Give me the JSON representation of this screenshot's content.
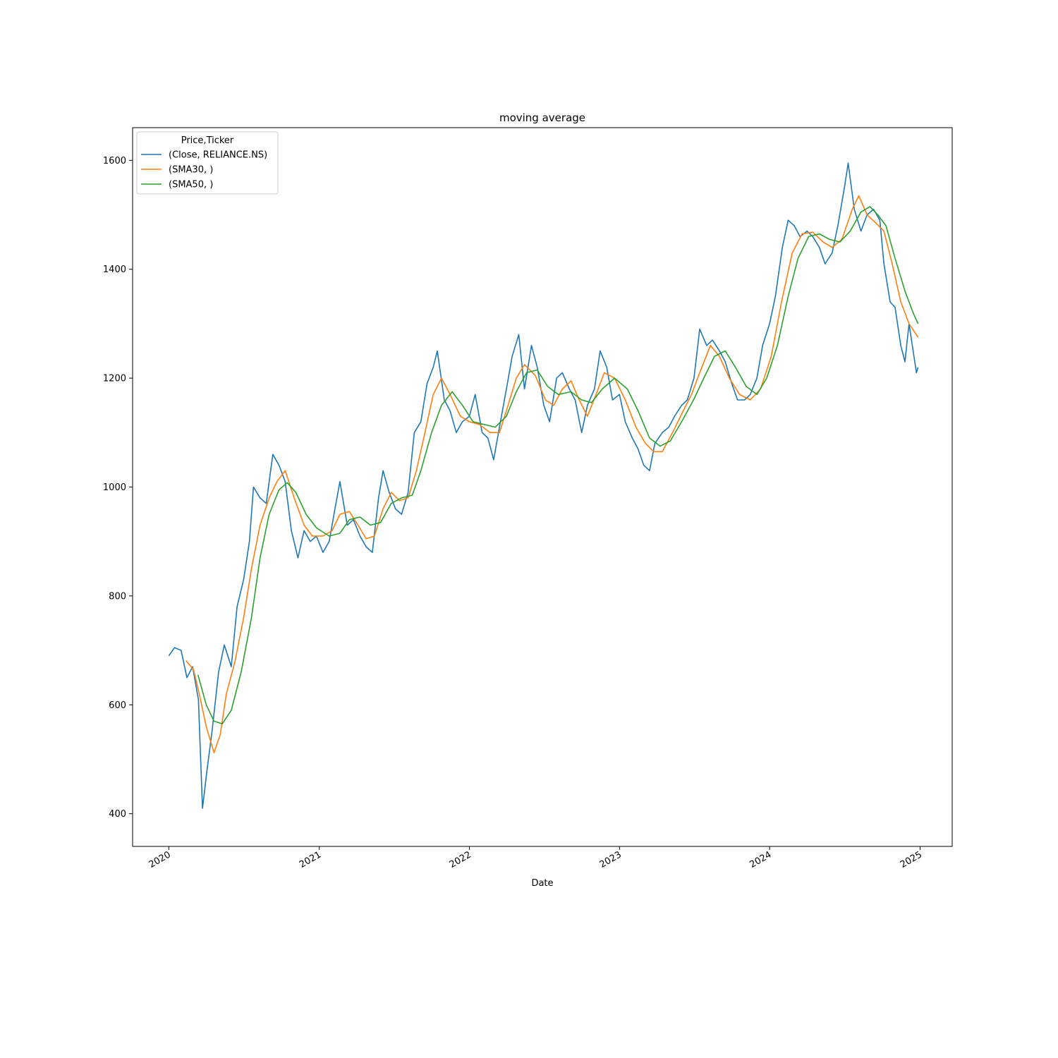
{
  "chart_data": {
    "type": "line",
    "title": "moving average",
    "xlabel": "Date",
    "ylabel": "",
    "xlim": [
      "2019-10-05",
      "2025-03-20"
    ],
    "ylim": [
      340,
      1660
    ],
    "x_ticks": [
      "2020",
      "2021",
      "2022",
      "2023",
      "2024",
      "2025"
    ],
    "y_ticks": [
      400,
      600,
      800,
      1000,
      1200,
      1400,
      1600
    ],
    "legend": {
      "title": "Price,Ticker",
      "position": "top-left"
    },
    "grid": false,
    "series": [
      {
        "name": "(Close, RELIANCE.NS)",
        "color": "#1f77b4",
        "points": [
          [
            "2020-01-01",
            690
          ],
          [
            "2020-01-15",
            705
          ],
          [
            "2020-01-31",
            700
          ],
          [
            "2020-02-14",
            650
          ],
          [
            "2020-02-28",
            670
          ],
          [
            "2020-03-13",
            610
          ],
          [
            "2020-03-23",
            410
          ],
          [
            "2020-04-03",
            480
          ],
          [
            "2020-04-15",
            550
          ],
          [
            "2020-05-01",
            660
          ],
          [
            "2020-05-15",
            710
          ],
          [
            "2020-06-01",
            670
          ],
          [
            "2020-06-15",
            780
          ],
          [
            "2020-07-01",
            830
          ],
          [
            "2020-07-15",
            900
          ],
          [
            "2020-07-25",
            1000
          ],
          [
            "2020-08-10",
            980
          ],
          [
            "2020-08-25",
            970
          ],
          [
            "2020-09-10",
            1060
          ],
          [
            "2020-09-25",
            1040
          ],
          [
            "2020-10-10",
            1010
          ],
          [
            "2020-10-25",
            920
          ],
          [
            "2020-11-10",
            870
          ],
          [
            "2020-11-25",
            920
          ],
          [
            "2020-12-10",
            900
          ],
          [
            "2020-12-25",
            910
          ],
          [
            "2021-01-10",
            880
          ],
          [
            "2021-01-25",
            900
          ],
          [
            "2021-02-08",
            960
          ],
          [
            "2021-02-20",
            1010
          ],
          [
            "2021-03-10",
            930
          ],
          [
            "2021-03-25",
            940
          ],
          [
            "2021-04-10",
            910
          ],
          [
            "2021-04-25",
            890
          ],
          [
            "2021-05-10",
            880
          ],
          [
            "2021-05-25",
            980
          ],
          [
            "2021-06-05",
            1030
          ],
          [
            "2021-06-20",
            990
          ],
          [
            "2021-07-05",
            960
          ],
          [
            "2021-07-20",
            950
          ],
          [
            "2021-08-05",
            990
          ],
          [
            "2021-08-20",
            1100
          ],
          [
            "2021-09-05",
            1120
          ],
          [
            "2021-09-20",
            1190
          ],
          [
            "2021-10-05",
            1220
          ],
          [
            "2021-10-15",
            1250
          ],
          [
            "2021-11-01",
            1160
          ],
          [
            "2021-11-15",
            1140
          ],
          [
            "2021-11-30",
            1100
          ],
          [
            "2021-12-15",
            1120
          ],
          [
            "2022-01-01",
            1130
          ],
          [
            "2022-01-15",
            1170
          ],
          [
            "2022-02-01",
            1100
          ],
          [
            "2022-02-15",
            1090
          ],
          [
            "2022-03-01",
            1050
          ],
          [
            "2022-03-15",
            1110
          ],
          [
            "2022-04-01",
            1180
          ],
          [
            "2022-04-15",
            1240
          ],
          [
            "2022-05-01",
            1280
          ],
          [
            "2022-05-15",
            1180
          ],
          [
            "2022-06-01",
            1260
          ],
          [
            "2022-06-15",
            1220
          ],
          [
            "2022-07-01",
            1150
          ],
          [
            "2022-07-15",
            1120
          ],
          [
            "2022-08-01",
            1200
          ],
          [
            "2022-08-15",
            1210
          ],
          [
            "2022-09-01",
            1180
          ],
          [
            "2022-09-15",
            1160
          ],
          [
            "2022-10-01",
            1100
          ],
          [
            "2022-10-15",
            1150
          ],
          [
            "2022-11-01",
            1180
          ],
          [
            "2022-11-15",
            1250
          ],
          [
            "2022-12-01",
            1220
          ],
          [
            "2022-12-15",
            1160
          ],
          [
            "2023-01-01",
            1170
          ],
          [
            "2023-01-15",
            1120
          ],
          [
            "2023-02-01",
            1090
          ],
          [
            "2023-02-15",
            1070
          ],
          [
            "2023-03-01",
            1040
          ],
          [
            "2023-03-15",
            1030
          ],
          [
            "2023-03-28",
            1080
          ],
          [
            "2023-04-15",
            1100
          ],
          [
            "2023-05-01",
            1110
          ],
          [
            "2023-05-15",
            1130
          ],
          [
            "2023-06-01",
            1150
          ],
          [
            "2023-06-15",
            1160
          ],
          [
            "2023-07-01",
            1200
          ],
          [
            "2023-07-15",
            1290
          ],
          [
            "2023-08-01",
            1260
          ],
          [
            "2023-08-15",
            1270
          ],
          [
            "2023-09-01",
            1250
          ],
          [
            "2023-09-15",
            1230
          ],
          [
            "2023-10-01",
            1190
          ],
          [
            "2023-10-15",
            1160
          ],
          [
            "2023-11-01",
            1160
          ],
          [
            "2023-11-15",
            1170
          ],
          [
            "2023-12-01",
            1200
          ],
          [
            "2023-12-15",
            1260
          ],
          [
            "2024-01-01",
            1300
          ],
          [
            "2024-01-15",
            1350
          ],
          [
            "2024-02-01",
            1440
          ],
          [
            "2024-02-15",
            1490
          ],
          [
            "2024-03-01",
            1480
          ],
          [
            "2024-03-15",
            1460
          ],
          [
            "2024-04-01",
            1470
          ],
          [
            "2024-04-15",
            1460
          ],
          [
            "2024-05-01",
            1440
          ],
          [
            "2024-05-15",
            1410
          ],
          [
            "2024-06-01",
            1430
          ],
          [
            "2024-06-15",
            1480
          ],
          [
            "2024-07-01",
            1550
          ],
          [
            "2024-07-10",
            1595
          ],
          [
            "2024-07-25",
            1510
          ],
          [
            "2024-08-10",
            1470
          ],
          [
            "2024-08-25",
            1500
          ],
          [
            "2024-09-10",
            1510
          ],
          [
            "2024-09-25",
            1490
          ],
          [
            "2024-10-05",
            1410
          ],
          [
            "2024-10-20",
            1340
          ],
          [
            "2024-11-01",
            1330
          ],
          [
            "2024-11-15",
            1260
          ],
          [
            "2024-11-25",
            1230
          ],
          [
            "2024-12-05",
            1300
          ],
          [
            "2024-12-15",
            1250
          ],
          [
            "2024-12-23",
            1210
          ],
          [
            "2024-12-27",
            1220
          ]
        ]
      },
      {
        "name": "(SMA30, )",
        "color": "#ff7f0e",
        "points": [
          [
            "2020-02-12",
            681
          ],
          [
            "2020-03-01",
            665
          ],
          [
            "2020-03-15",
            620
          ],
          [
            "2020-04-01",
            560
          ],
          [
            "2020-04-20",
            512
          ],
          [
            "2020-05-05",
            545
          ],
          [
            "2020-05-20",
            620
          ],
          [
            "2020-06-10",
            680
          ],
          [
            "2020-07-01",
            760
          ],
          [
            "2020-07-20",
            850
          ],
          [
            "2020-08-10",
            930
          ],
          [
            "2020-09-01",
            980
          ],
          [
            "2020-09-20",
            1010
          ],
          [
            "2020-10-10",
            1030
          ],
          [
            "2020-11-01",
            980
          ],
          [
            "2020-11-25",
            930
          ],
          [
            "2020-12-15",
            910
          ],
          [
            "2021-01-10",
            910
          ],
          [
            "2021-02-01",
            920
          ],
          [
            "2021-02-20",
            950
          ],
          [
            "2021-03-15",
            955
          ],
          [
            "2021-04-05",
            930
          ],
          [
            "2021-04-25",
            905
          ],
          [
            "2021-05-15",
            910
          ],
          [
            "2021-06-05",
            960
          ],
          [
            "2021-06-25",
            990
          ],
          [
            "2021-07-15",
            975
          ],
          [
            "2021-08-05",
            980
          ],
          [
            "2021-08-25",
            1030
          ],
          [
            "2021-09-15",
            1100
          ],
          [
            "2021-10-05",
            1170
          ],
          [
            "2021-10-25",
            1200
          ],
          [
            "2021-11-15",
            1170
          ],
          [
            "2021-12-10",
            1130
          ],
          [
            "2022-01-01",
            1120
          ],
          [
            "2022-01-25",
            1115
          ],
          [
            "2022-02-20",
            1100
          ],
          [
            "2022-03-15",
            1100
          ],
          [
            "2022-04-05",
            1150
          ],
          [
            "2022-04-25",
            1200
          ],
          [
            "2022-05-15",
            1225
          ],
          [
            "2022-06-10",
            1205
          ],
          [
            "2022-07-05",
            1160
          ],
          [
            "2022-07-25",
            1150
          ],
          [
            "2022-08-15",
            1180
          ],
          [
            "2022-09-05",
            1195
          ],
          [
            "2022-09-25",
            1160
          ],
          [
            "2022-10-15",
            1130
          ],
          [
            "2022-11-05",
            1170
          ],
          [
            "2022-11-25",
            1210
          ],
          [
            "2022-12-20",
            1200
          ],
          [
            "2023-01-15",
            1160
          ],
          [
            "2023-02-10",
            1110
          ],
          [
            "2023-03-05",
            1080
          ],
          [
            "2023-03-25",
            1065
          ],
          [
            "2023-04-15",
            1065
          ],
          [
            "2023-05-10",
            1100
          ],
          [
            "2023-06-05",
            1140
          ],
          [
            "2023-06-25",
            1170
          ],
          [
            "2023-07-15",
            1210
          ],
          [
            "2023-08-10",
            1260
          ],
          [
            "2023-09-01",
            1240
          ],
          [
            "2023-09-25",
            1200
          ],
          [
            "2023-10-20",
            1170
          ],
          [
            "2023-11-15",
            1160
          ],
          [
            "2023-12-10",
            1180
          ],
          [
            "2024-01-05",
            1240
          ],
          [
            "2024-01-30",
            1340
          ],
          [
            "2024-02-25",
            1430
          ],
          [
            "2024-03-20",
            1465
          ],
          [
            "2024-04-15",
            1468
          ],
          [
            "2024-05-10",
            1450
          ],
          [
            "2024-06-01",
            1440
          ],
          [
            "2024-06-25",
            1455
          ],
          [
            "2024-07-20",
            1510
          ],
          [
            "2024-08-05",
            1535
          ],
          [
            "2024-08-25",
            1500
          ],
          [
            "2024-09-15",
            1485
          ],
          [
            "2024-10-05",
            1470
          ],
          [
            "2024-10-25",
            1410
          ],
          [
            "2024-11-15",
            1340
          ],
          [
            "2024-12-05",
            1300
          ],
          [
            "2024-12-27",
            1275
          ]
        ]
      },
      {
        "name": "(SMA50, )",
        "color": "#2ca02c",
        "points": [
          [
            "2020-03-12",
            655
          ],
          [
            "2020-04-01",
            600
          ],
          [
            "2020-04-20",
            570
          ],
          [
            "2020-05-10",
            565
          ],
          [
            "2020-06-01",
            590
          ],
          [
            "2020-06-25",
            660
          ],
          [
            "2020-07-20",
            760
          ],
          [
            "2020-08-10",
            870
          ],
          [
            "2020-09-01",
            950
          ],
          [
            "2020-09-25",
            995
          ],
          [
            "2020-10-15",
            1008
          ],
          [
            "2020-11-05",
            990
          ],
          [
            "2020-11-30",
            950
          ],
          [
            "2020-12-25",
            925
          ],
          [
            "2021-01-25",
            910
          ],
          [
            "2021-02-20",
            915
          ],
          [
            "2021-03-15",
            940
          ],
          [
            "2021-04-10",
            945
          ],
          [
            "2021-05-05",
            930
          ],
          [
            "2021-05-30",
            935
          ],
          [
            "2021-06-25",
            970
          ],
          [
            "2021-07-20",
            980
          ],
          [
            "2021-08-15",
            985
          ],
          [
            "2021-09-05",
            1030
          ],
          [
            "2021-10-01",
            1100
          ],
          [
            "2021-10-25",
            1150
          ],
          [
            "2021-11-20",
            1175
          ],
          [
            "2021-12-15",
            1150
          ],
          [
            "2022-01-10",
            1120
          ],
          [
            "2022-02-05",
            1115
          ],
          [
            "2022-03-05",
            1110
          ],
          [
            "2022-04-01",
            1130
          ],
          [
            "2022-04-25",
            1175
          ],
          [
            "2022-05-20",
            1210
          ],
          [
            "2022-06-15",
            1215
          ],
          [
            "2022-07-10",
            1185
          ],
          [
            "2022-08-05",
            1170
          ],
          [
            "2022-09-05",
            1175
          ],
          [
            "2022-10-01",
            1160
          ],
          [
            "2022-10-25",
            1155
          ],
          [
            "2022-11-20",
            1180
          ],
          [
            "2022-12-20",
            1200
          ],
          [
            "2023-01-20",
            1180
          ],
          [
            "2023-02-15",
            1140
          ],
          [
            "2023-03-15",
            1090
          ],
          [
            "2023-04-10",
            1075
          ],
          [
            "2023-05-05",
            1085
          ],
          [
            "2023-06-01",
            1120
          ],
          [
            "2023-06-30",
            1160
          ],
          [
            "2023-07-25",
            1200
          ],
          [
            "2023-08-20",
            1240
          ],
          [
            "2023-09-15",
            1250
          ],
          [
            "2023-10-10",
            1220
          ],
          [
            "2023-11-05",
            1185
          ],
          [
            "2023-12-01",
            1170
          ],
          [
            "2023-12-25",
            1200
          ],
          [
            "2024-01-20",
            1260
          ],
          [
            "2024-02-15",
            1350
          ],
          [
            "2024-03-10",
            1420
          ],
          [
            "2024-04-05",
            1460
          ],
          [
            "2024-05-01",
            1465
          ],
          [
            "2024-05-25",
            1455
          ],
          [
            "2024-06-20",
            1450
          ],
          [
            "2024-07-15",
            1470
          ],
          [
            "2024-08-10",
            1505
          ],
          [
            "2024-09-01",
            1515
          ],
          [
            "2024-09-20",
            1500
          ],
          [
            "2024-10-10",
            1480
          ],
          [
            "2024-11-01",
            1420
          ],
          [
            "2024-11-25",
            1360
          ],
          [
            "2024-12-15",
            1320
          ],
          [
            "2024-12-27",
            1300
          ]
        ]
      }
    ]
  }
}
